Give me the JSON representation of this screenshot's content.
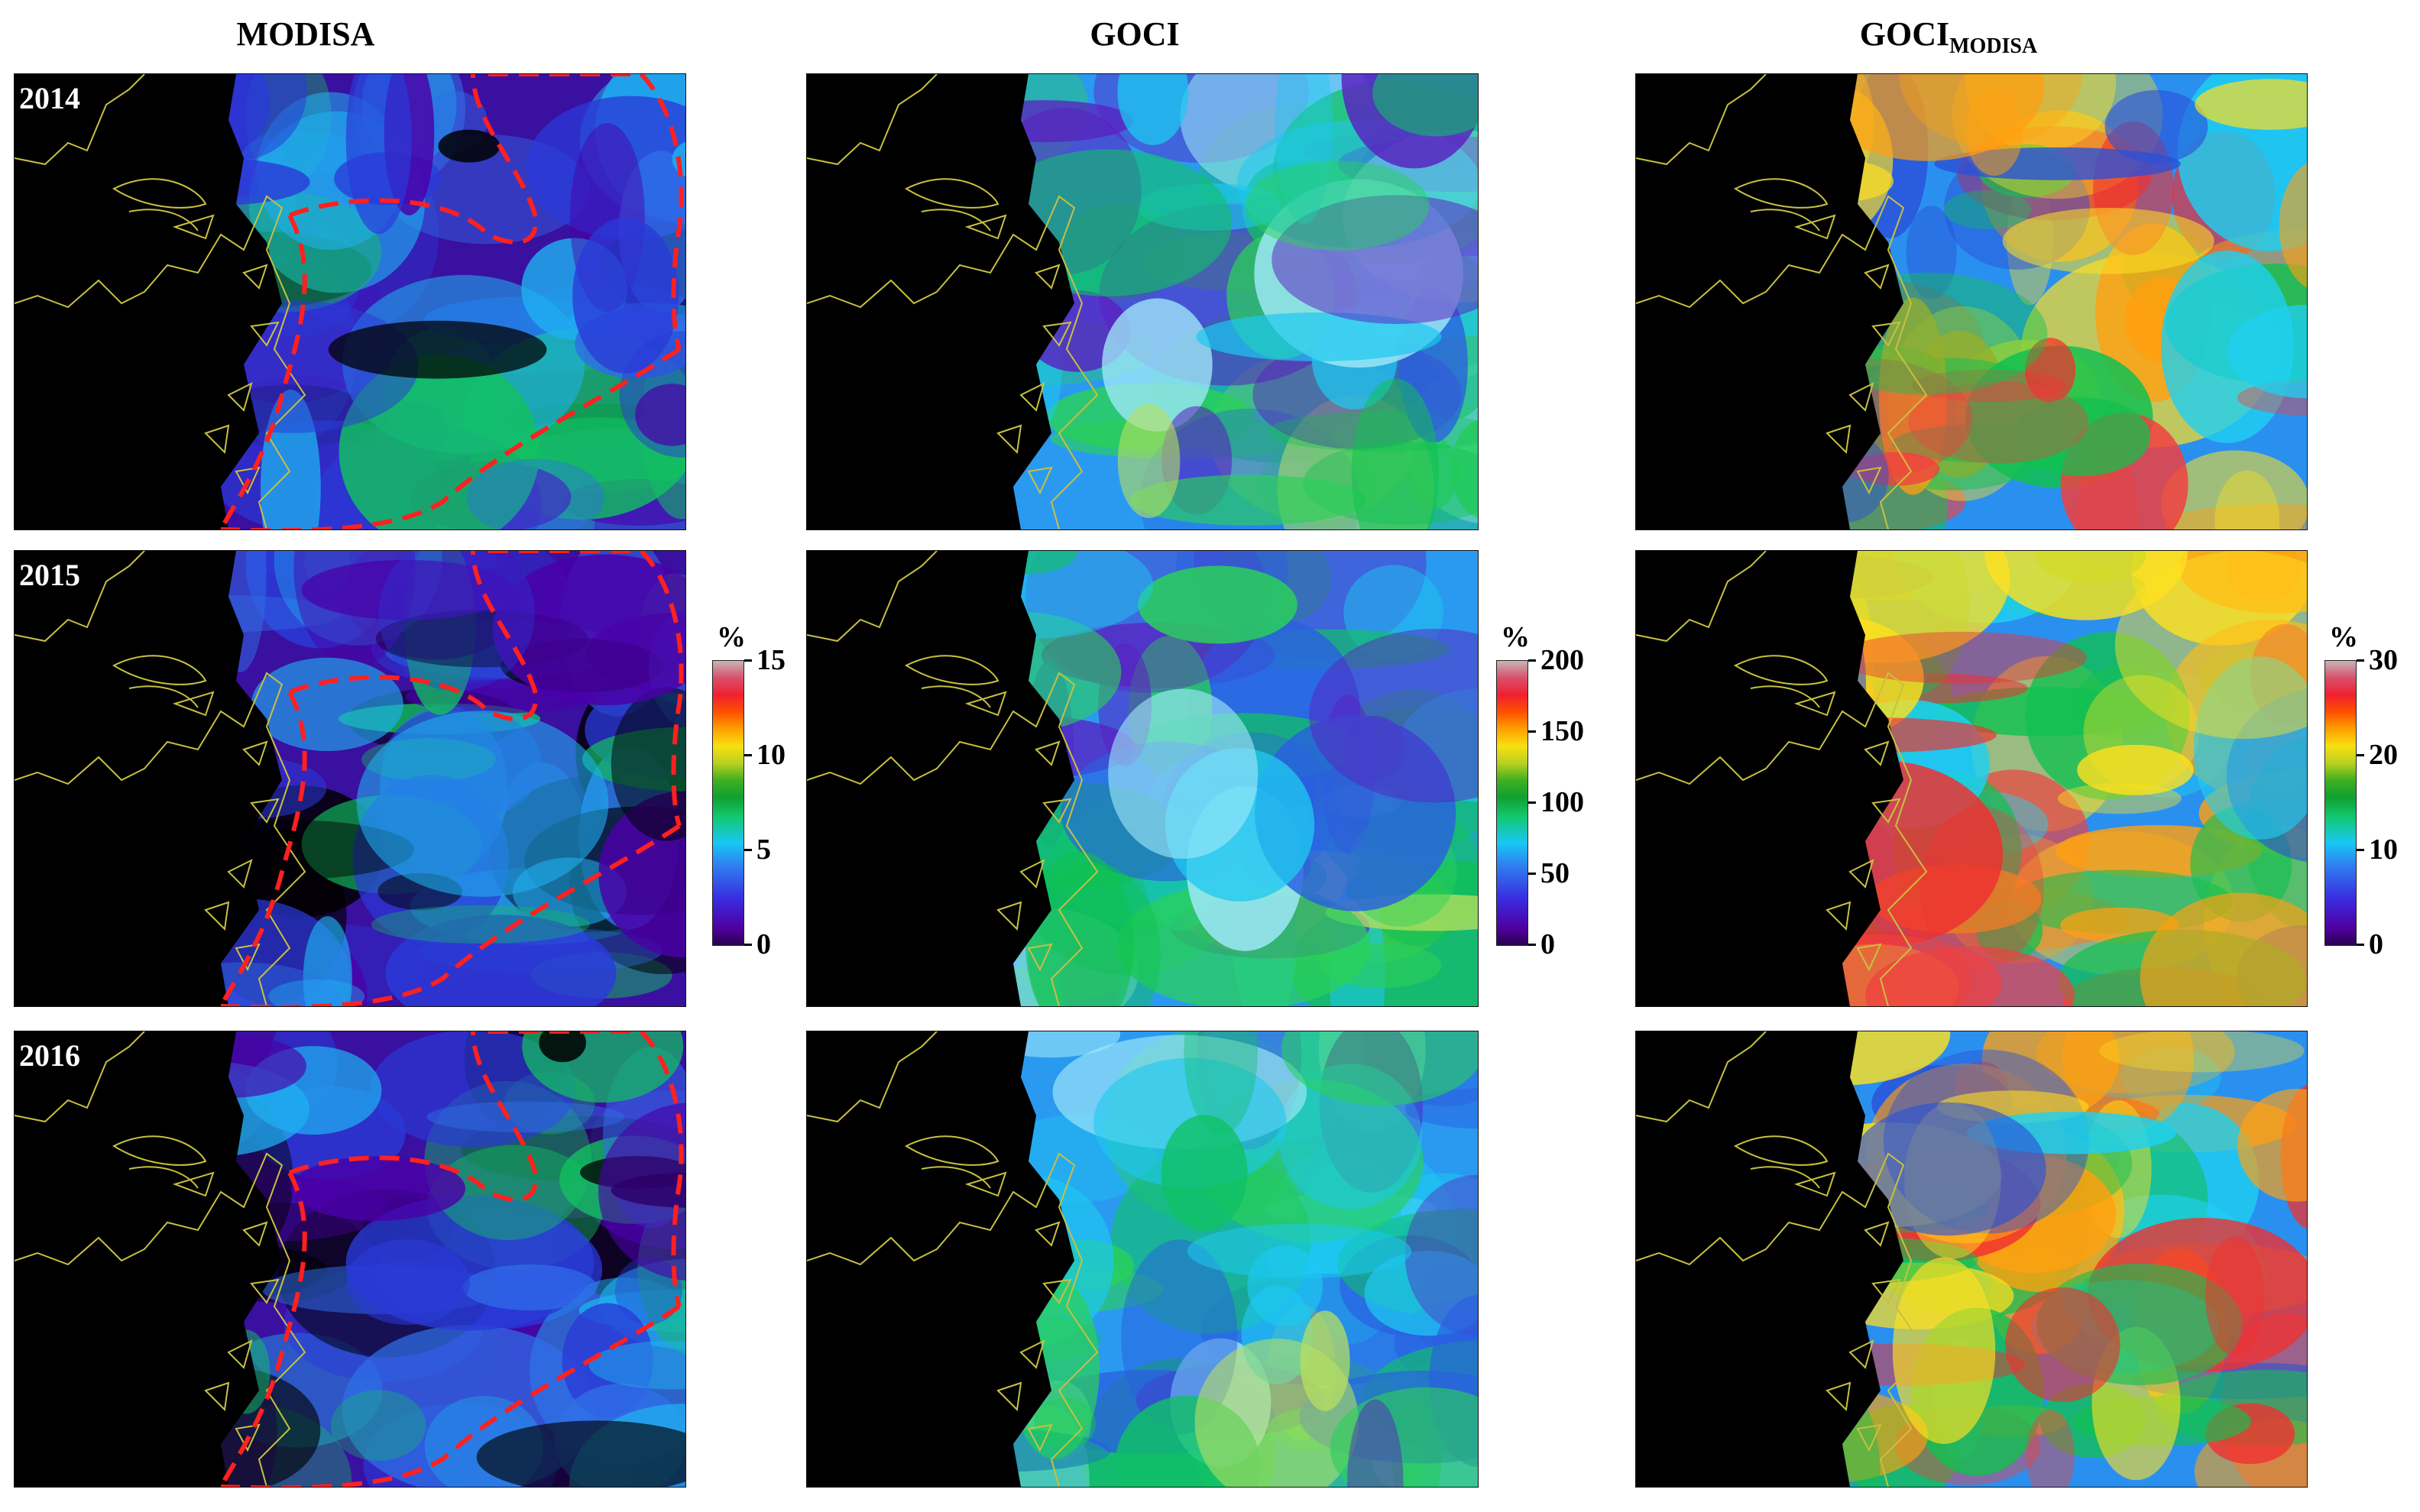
{
  "columns": [
    {
      "id": "modisa",
      "title": "MODISA",
      "sub": ""
    },
    {
      "id": "goci",
      "title": "GOCI",
      "sub": ""
    },
    {
      "id": "goci_modisa",
      "title": "GOCI",
      "sub": "MODISA"
    }
  ],
  "rows": [
    {
      "year": "2014"
    },
    {
      "year": "2015"
    },
    {
      "year": "2016"
    }
  ],
  "colorbars": [
    {
      "unit": "%",
      "ticks": [
        "15",
        "10",
        "5",
        "0"
      ]
    },
    {
      "unit": "%",
      "ticks": [
        "200",
        "150",
        "100",
        "50",
        "0"
      ]
    },
    {
      "unit": "%",
      "ticks": [
        "30",
        "20",
        "10",
        "0"
      ]
    }
  ],
  "colors": {
    "land": "#000000",
    "coastline": "#c8c040",
    "outline_dash": "#ff2020",
    "scale_low": "#2a0050",
    "scale_high": "#c8b4b8"
  }
}
